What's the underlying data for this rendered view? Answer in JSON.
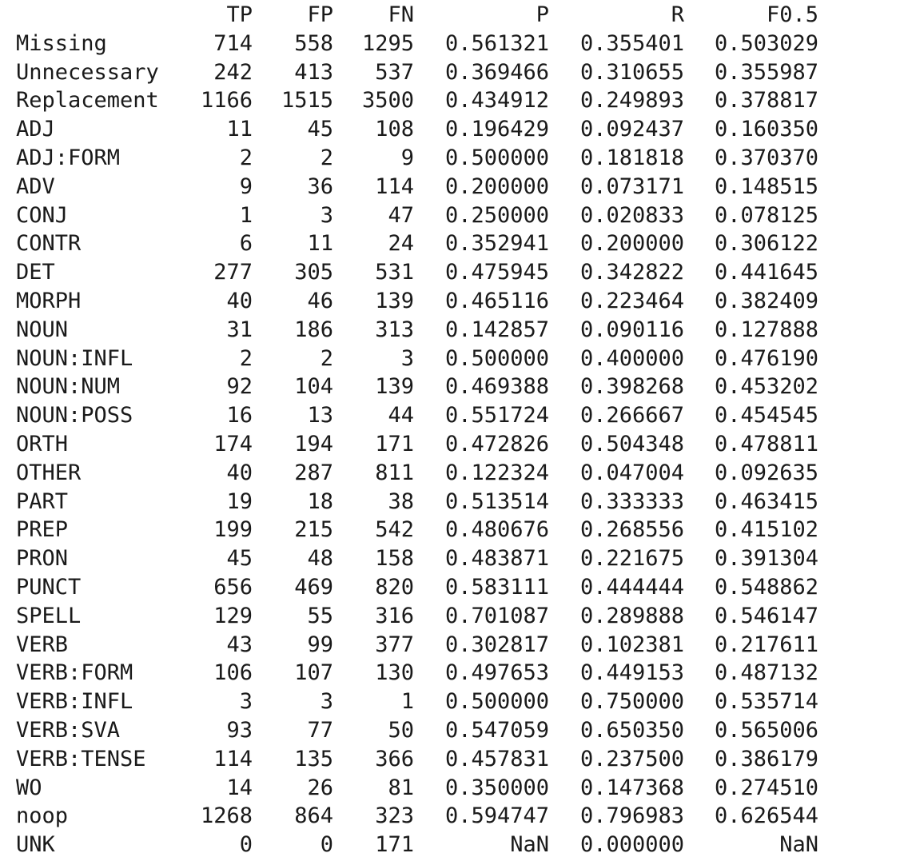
{
  "table": {
    "columns": [
      "",
      "TP",
      "FP",
      "FN",
      "P",
      "R",
      "F0.5"
    ],
    "rows": [
      [
        "Missing",
        "714",
        "558",
        "1295",
        "0.561321",
        "0.355401",
        "0.503029"
      ],
      [
        "Unnecessary",
        "242",
        "413",
        "537",
        "0.369466",
        "0.310655",
        "0.355987"
      ],
      [
        "Replacement",
        "1166",
        "1515",
        "3500",
        "0.434912",
        "0.249893",
        "0.378817"
      ],
      [
        "ADJ",
        "11",
        "45",
        "108",
        "0.196429",
        "0.092437",
        "0.160350"
      ],
      [
        "ADJ:FORM",
        "2",
        "2",
        "9",
        "0.500000",
        "0.181818",
        "0.370370"
      ],
      [
        "ADV",
        "9",
        "36",
        "114",
        "0.200000",
        "0.073171",
        "0.148515"
      ],
      [
        "CONJ",
        "1",
        "3",
        "47",
        "0.250000",
        "0.020833",
        "0.078125"
      ],
      [
        "CONTR",
        "6",
        "11",
        "24",
        "0.352941",
        "0.200000",
        "0.306122"
      ],
      [
        "DET",
        "277",
        "305",
        "531",
        "0.475945",
        "0.342822",
        "0.441645"
      ],
      [
        "MORPH",
        "40",
        "46",
        "139",
        "0.465116",
        "0.223464",
        "0.382409"
      ],
      [
        "NOUN",
        "31",
        "186",
        "313",
        "0.142857",
        "0.090116",
        "0.127888"
      ],
      [
        "NOUN:INFL",
        "2",
        "2",
        "3",
        "0.500000",
        "0.400000",
        "0.476190"
      ],
      [
        "NOUN:NUM",
        "92",
        "104",
        "139",
        "0.469388",
        "0.398268",
        "0.453202"
      ],
      [
        "NOUN:POSS",
        "16",
        "13",
        "44",
        "0.551724",
        "0.266667",
        "0.454545"
      ],
      [
        "ORTH",
        "174",
        "194",
        "171",
        "0.472826",
        "0.504348",
        "0.478811"
      ],
      [
        "OTHER",
        "40",
        "287",
        "811",
        "0.122324",
        "0.047004",
        "0.092635"
      ],
      [
        "PART",
        "19",
        "18",
        "38",
        "0.513514",
        "0.333333",
        "0.463415"
      ],
      [
        "PREP",
        "199",
        "215",
        "542",
        "0.480676",
        "0.268556",
        "0.415102"
      ],
      [
        "PRON",
        "45",
        "48",
        "158",
        "0.483871",
        "0.221675",
        "0.391304"
      ],
      [
        "PUNCT",
        "656",
        "469",
        "820",
        "0.583111",
        "0.444444",
        "0.548862"
      ],
      [
        "SPELL",
        "129",
        "55",
        "316",
        "0.701087",
        "0.289888",
        "0.546147"
      ],
      [
        "VERB",
        "43",
        "99",
        "377",
        "0.302817",
        "0.102381",
        "0.217611"
      ],
      [
        "VERB:FORM",
        "106",
        "107",
        "130",
        "0.497653",
        "0.449153",
        "0.487132"
      ],
      [
        "VERB:INFL",
        "3",
        "3",
        "1",
        "0.500000",
        "0.750000",
        "0.535714"
      ],
      [
        "VERB:SVA",
        "93",
        "77",
        "50",
        "0.547059",
        "0.650350",
        "0.565006"
      ],
      [
        "VERB:TENSE",
        "114",
        "135",
        "366",
        "0.457831",
        "0.237500",
        "0.386179"
      ],
      [
        "WO",
        "14",
        "26",
        "81",
        "0.350000",
        "0.147368",
        "0.274510"
      ],
      [
        "noop",
        "1268",
        "864",
        "323",
        "0.594747",
        "0.796983",
        "0.626544"
      ],
      [
        "UNK",
        "0",
        "0",
        "171",
        "NaN",
        "0.000000",
        "NaN"
      ]
    ]
  }
}
